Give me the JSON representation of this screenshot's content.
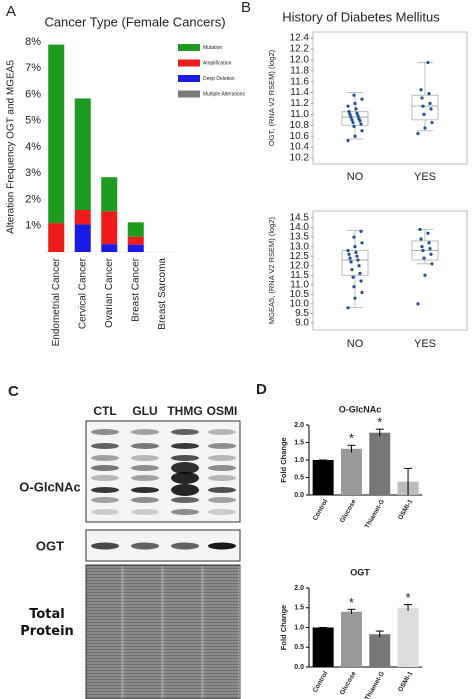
{
  "panels": {
    "labels": [
      "A",
      "B",
      "C",
      "D"
    ]
  },
  "blot": {
    "lanes": [
      "CTL",
      "GLU",
      "THMG",
      "OSMI"
    ],
    "rows": [
      "O-GlcNAc",
      "OGT",
      "Total Protein"
    ]
  },
  "chart_data": [
    {
      "type": "stacked-bar",
      "title": "Cancer Type (Female Cancers)",
      "y_label": "Alteration Frequency OGT and MGEA5",
      "categories": [
        "Endometrial Cancer",
        "Cervical Cancer",
        "Ovarian Cancer",
        "Breast Cancer",
        "Breast Sarcoma"
      ],
      "series": [
        {
          "name": "Mutation",
          "color": "#1e9a1e",
          "values": [
            6.8,
            4.25,
            1.3,
            0.55,
            0
          ]
        },
        {
          "name": "Amplification",
          "color": "#ee1c1c",
          "values": [
            1.1,
            0.55,
            1.25,
            0.3,
            0
          ]
        },
        {
          "name": "Deep Deletion",
          "color": "#1a1ae6",
          "values": [
            0,
            1.05,
            0.3,
            0.28,
            0
          ]
        },
        {
          "name": "Multiple Alterations",
          "color": "#7a7a7a",
          "values": [
            0,
            0,
            0,
            0,
            0
          ]
        }
      ],
      "ylim": [
        0,
        8
      ],
      "yticks": [
        {
          "value": 1,
          "label": "1%"
        },
        {
          "value": 2,
          "label": "2%"
        },
        {
          "value": 3,
          "label": "3%"
        },
        {
          "value": 4,
          "label": "4%"
        },
        {
          "value": 5,
          "label": "5%"
        },
        {
          "value": 6,
          "label": "6%"
        },
        {
          "value": 7,
          "label": "7%"
        },
        {
          "value": 8,
          "label": "8%"
        }
      ],
      "legend": "upper right"
    },
    {
      "type": "box",
      "title": "History of Diabetes Mellitus",
      "y_label": "OGT, (RNA V2 RSEM) (log2)",
      "categories": [
        "NO",
        "YES"
      ],
      "boxes": [
        {
          "min": 10.55,
          "q1": 10.8,
          "median": 10.95,
          "q3": 11.05,
          "max": 11.4
        },
        {
          "min": 10.7,
          "q1": 10.9,
          "median": 11.15,
          "q3": 11.35,
          "max": 11.95
        }
      ],
      "points": [
        [
          10.52,
          10.6,
          10.7,
          10.78,
          10.82,
          10.85,
          10.88,
          10.9,
          10.92,
          10.95,
          10.97,
          11.0,
          11.02,
          11.05,
          11.1,
          11.15,
          11.2,
          11.28,
          11.35
        ],
        [
          10.65,
          10.75,
          10.85,
          11.0,
          11.1,
          11.15,
          11.2,
          11.3,
          11.38,
          11.45,
          11.95
        ]
      ],
      "color": "#1f4e9a",
      "ylim": [
        10.2,
        12.4
      ],
      "yticks": [
        10.2,
        10.4,
        10.6,
        10.8,
        {
          "value": 11,
          "label": "11.0"
        },
        11.2,
        11.4,
        11.6,
        11.8,
        {
          "value": 12,
          "label": "12.0"
        },
        12.2,
        12.4
      ]
    },
    {
      "type": "box",
      "y_label": "MGEA5, (RNA V2 RSEM) (log2)",
      "categories": [
        "NO",
        "YES"
      ],
      "boxes": [
        {
          "min": 9.8,
          "q1": 11.5,
          "median": 12.3,
          "q3": 12.8,
          "max": 13.85
        },
        {
          "min": 12.1,
          "q1": 12.3,
          "median": 12.8,
          "q3": 13.3,
          "max": 13.9
        }
      ],
      "points": [
        [
          9.8,
          10.3,
          10.6,
          10.9,
          11.2,
          11.4,
          11.6,
          11.8,
          12.0,
          12.2,
          12.3,
          12.4,
          12.5,
          12.6,
          12.7,
          12.8,
          13.0,
          13.2,
          13.5,
          13.8
        ],
        [
          10.0,
          11.5,
          12.1,
          12.4,
          12.6,
          12.8,
          12.9,
          13.0,
          13.2,
          13.4,
          13.7,
          13.9
        ]
      ],
      "color": "#1f4e9a",
      "ylim": [
        9,
        14.5
      ],
      "yticks": [
        {
          "value": 9,
          "label": "9.0"
        },
        9.5,
        {
          "value": 10,
          "label": "10.0"
        },
        10.5,
        {
          "value": 11,
          "label": "11.0"
        },
        11.5,
        {
          "value": 12,
          "label": "12.0"
        },
        12.5,
        {
          "value": 13,
          "label": "13.0"
        },
        13.5,
        {
          "value": 14,
          "label": "14.0"
        },
        14.5
      ]
    },
    {
      "type": "bar",
      "title": "O-GlcNAc",
      "y_label": "Fold Change",
      "categories": [
        "Control",
        "Glucose",
        "Thiamet-G",
        "OSMI-1"
      ],
      "values": [
        1.0,
        1.32,
        1.78,
        0.38
      ],
      "errors": [
        0,
        0.1,
        0.1,
        0.38
      ],
      "colors": [
        "#000000",
        "#999999",
        "#777777",
        "#bbbbbb"
      ],
      "annotations": [
        {
          "text": "*",
          "category": "Glucose"
        },
        {
          "text": "*",
          "category": "Thiamet-G"
        }
      ],
      "ylim": [
        0,
        2
      ],
      "yticks": [
        {
          "value": 0,
          "label": "0.0"
        },
        0.5,
        {
          "value": 1,
          "label": "1.0"
        },
        1.5,
        {
          "value": 2,
          "label": "2.0"
        }
      ]
    },
    {
      "type": "bar",
      "title": "OGT",
      "y_label": "Fold Change",
      "categories": [
        "Control",
        "Glucose",
        "Thiamet-G",
        "OSMI-1"
      ],
      "values": [
        1.0,
        1.4,
        0.83,
        1.5
      ],
      "errors": [
        0,
        0.06,
        0.08,
        0.08
      ],
      "colors": [
        "#000000",
        "#999999",
        "#777777",
        "#dddddd"
      ],
      "annotations": [
        {
          "text": "*",
          "category": "Glucose"
        },
        {
          "text": "*",
          "category": "OSMI-1"
        }
      ],
      "ylim": [
        0,
        2
      ],
      "yticks": [
        {
          "value": 0,
          "label": "0.0"
        },
        0.5,
        {
          "value": 1,
          "label": "1.0"
        },
        1.5,
        {
          "value": 2,
          "label": "2.0"
        }
      ]
    }
  ]
}
